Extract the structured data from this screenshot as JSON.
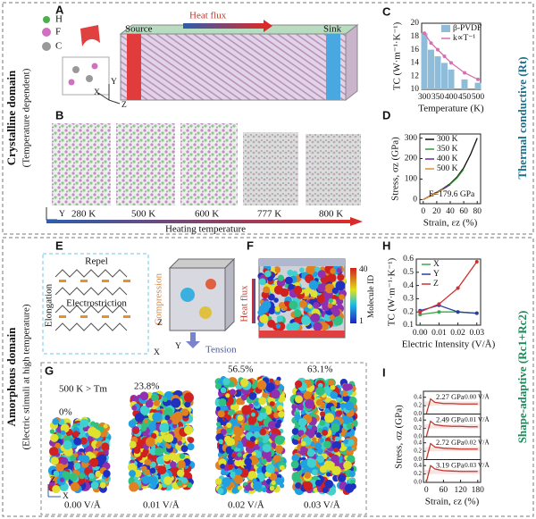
{
  "labels": {
    "letters": [
      "A",
      "B",
      "C",
      "D",
      "E",
      "F",
      "G",
      "H",
      "I"
    ],
    "crystalline": "Crystalline domain",
    "crystalline_sub": "(Temperature dependent)",
    "thermal": "Thermal conductive (Rt)",
    "amorphous": "Amorphous domain",
    "amorphous_sub": "(Electric stimuli at high temperature)",
    "shape": "Shape-adaptive (Rc1+Rc2)"
  },
  "panel_a": {
    "atoms": [
      "H",
      "F",
      "C"
    ],
    "source": "Source",
    "heat_flux": "Heat flux",
    "sink": "Sink",
    "axes": [
      "X",
      "Y",
      "Z"
    ]
  },
  "panel_b": {
    "temps": [
      "280 K",
      "500 K",
      "600 K",
      "777 K",
      "800 K"
    ],
    "axis": "Y",
    "label": "Heating temperature"
  },
  "panel_e": {
    "repel": "Repel",
    "elongation": "Elongation",
    "electrostriction": "Electrostriction",
    "compression": "Compression",
    "tension": "Tension",
    "axes": [
      "Z",
      "Y",
      "X"
    ]
  },
  "panel_f": {
    "heat_flux": "Heat flux",
    "colorbar_label": "Molecule ID",
    "colorbar_ticks": [
      40,
      1
    ]
  },
  "panel_g": {
    "condition": "500 K > Tm",
    "strains": [
      "0%",
      "23.8%",
      "56.5%",
      "63.1%"
    ],
    "fields": [
      "0.00 V/Å",
      "0.01 V/Å",
      "0.02 V/Å",
      "0.03 V/Å"
    ],
    "axes": [
      "Z",
      "X"
    ]
  },
  "chart_data": [
    {
      "type": "combo",
      "xlabel": "Temperature (K)",
      "ylabel": "TC (W·m⁻¹·K⁻¹)",
      "x": [
        300,
        325,
        350,
        375,
        400,
        450,
        500
      ],
      "xlim": [
        290,
        510
      ],
      "xticks": [
        300,
        350,
        400,
        450,
        500
      ],
      "ylim": [
        10,
        20
      ],
      "yticks": [
        10,
        12,
        14,
        16,
        18,
        20
      ],
      "legend": "upper right",
      "series": [
        {
          "name": "β-PVDF",
          "kind": "bar",
          "color": "#8fbcd9",
          "values": [
            18.5,
            16,
            15,
            14,
            13,
            11.5,
            11
          ]
        },
        {
          "name": "k∝T⁻¹",
          "kind": "line",
          "color": "#d870b0",
          "marker": true,
          "values": [
            18.5,
            17,
            16,
            15,
            14,
            12.5,
            11.5
          ]
        }
      ]
    },
    {
      "type": "line",
      "xlabel": "Strain, εz (%)",
      "ylabel": "Stress, σz (GPa)",
      "annotation": "E=179.6 GPa",
      "x": [
        0,
        10,
        20,
        30,
        40,
        50,
        60,
        70,
        80
      ],
      "xlim": [
        -5,
        85
      ],
      "xticks": [
        0,
        20,
        40,
        60,
        80
      ],
      "ylim": [
        -20,
        320
      ],
      "yticks": [
        0,
        100,
        200,
        300
      ],
      "legend": "upper left",
      "series": [
        {
          "name": "300 K",
          "color": "#111111",
          "values": [
            0,
            18,
            36,
            55,
            78,
            110,
            155,
            220,
            300
          ]
        },
        {
          "name": "350 K",
          "color": "#2e9c2e",
          "values": [
            0,
            17,
            35,
            53,
            75,
            105,
            148,
            null,
            null
          ]
        },
        {
          "name": "400 K",
          "color": "#6a2c9c",
          "values": [
            0,
            17,
            34,
            52,
            73,
            null,
            null,
            null,
            null
          ]
        },
        {
          "name": "500 K",
          "color": "#e0902a",
          "values": [
            0,
            16,
            33,
            50,
            null,
            null,
            null,
            null,
            null
          ]
        }
      ]
    },
    {
      "type": "line",
      "xlabel": "Electric Intensity (V/Å)",
      "ylabel": "TC (W·m⁻¹·K⁻¹)",
      "x": [
        0,
        0.01,
        0.02,
        0.03
      ],
      "xlim": [
        -0.002,
        0.032
      ],
      "xticks": [
        {
          "value": 0,
          "label": "0.00"
        },
        {
          "value": 0.01,
          "label": "0.01"
        },
        {
          "value": 0.02,
          "label": "0.02"
        },
        {
          "value": 0.03,
          "label": "0.03"
        }
      ],
      "ylim": [
        0.1,
        0.6
      ],
      "yticks": [
        0.1,
        0.2,
        0.3,
        0.4,
        0.5,
        0.6
      ],
      "legend": "upper left",
      "series": [
        {
          "name": "X",
          "color": "#3aa84a",
          "marker": true,
          "values": [
            0.18,
            0.2,
            0.2,
            0.19
          ]
        },
        {
          "name": "Y",
          "color": "#2a3f9c",
          "marker": true,
          "values": [
            0.21,
            0.25,
            0.2,
            0.19
          ]
        },
        {
          "name": "Z",
          "color": "#d03030",
          "marker": true,
          "values": [
            0.2,
            0.26,
            0.38,
            0.58
          ]
        }
      ]
    },
    {
      "type": "panels",
      "xlabel": "Strain, εz (%)",
      "ylabel": "Stress, σz (GPa)",
      "x": [
        0,
        15,
        30,
        60,
        90,
        120,
        150,
        180
      ],
      "xlim": [
        -10,
        190
      ],
      "xticks": [
        0,
        60,
        120,
        180
      ],
      "ylim": [
        0,
        0.5
      ],
      "yticks": [
        {
          "value": 0,
          "label": "0.0"
        },
        {
          "value": 0.2,
          "label": "0.2"
        },
        {
          "value": 0.4,
          "label": "0.4"
        }
      ],
      "series": [
        {
          "name": "0.00 V/Å",
          "annotation": "2.27 GPa",
          "color": "#c0392b",
          "values": [
            0,
            0.36,
            0.28,
            0.25,
            0.25,
            0.24,
            0.24,
            0.24
          ]
        },
        {
          "name": "0.01 V/Å",
          "annotation": "2.49 GPa",
          "color": "#c0392b",
          "values": [
            0,
            0.37,
            0.29,
            0.26,
            0.25,
            0.25,
            0.24,
            0.24
          ]
        },
        {
          "name": "0.02 V/Å",
          "annotation": "2.72 GPa",
          "color": "#c0392b",
          "values": [
            0,
            0.38,
            0.3,
            0.27,
            0.26,
            0.25,
            0.25,
            0.25
          ]
        },
        {
          "name": "0.03 V/Å",
          "annotation": "3.19 GPa",
          "color": "#c0392b",
          "values": [
            0,
            0.4,
            0.32,
            0.28,
            0.27,
            0.26,
            0.26,
            0.26
          ]
        }
      ]
    }
  ]
}
